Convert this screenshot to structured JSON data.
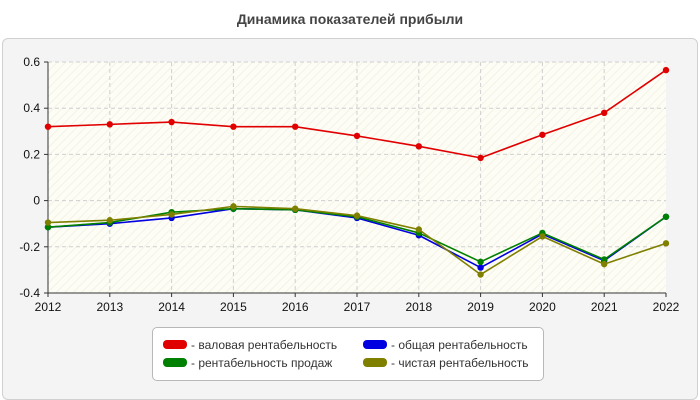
{
  "chart_data": {
    "type": "line",
    "title": "Динамика показателей прибыли",
    "xlabel": "",
    "ylabel": "",
    "categories": [
      "2012",
      "2013",
      "2014",
      "2015",
      "2016",
      "2017",
      "2018",
      "2019",
      "2020",
      "2021",
      "2022"
    ],
    "ylim": [
      -0.4,
      0.6
    ],
    "yticks": [
      -0.4,
      -0.2,
      0,
      0.2,
      0.4,
      0.6
    ],
    "ytick_labels": [
      "-0.4",
      "-0.2",
      "0",
      "0.2",
      "0.4",
      "0.6"
    ],
    "grid": true,
    "legend_position": "bottom",
    "series": [
      {
        "name": "валовая рентабельность",
        "color": "#e00000",
        "values": [
          0.32,
          0.33,
          0.34,
          0.32,
          0.32,
          0.28,
          0.235,
          0.185,
          0.285,
          0.38,
          0.565
        ]
      },
      {
        "name": "общая рентабельность",
        "color": "#0000e0",
        "values": [
          -0.115,
          -0.1,
          -0.075,
          -0.035,
          -0.04,
          -0.075,
          -0.15,
          -0.29,
          -0.145,
          -0.26,
          -0.07
        ]
      },
      {
        "name": "рентабельность продаж",
        "color": "#008000",
        "values": [
          -0.115,
          -0.095,
          -0.05,
          -0.035,
          -0.04,
          -0.07,
          -0.14,
          -0.265,
          -0.14,
          -0.255,
          -0.07
        ]
      },
      {
        "name": "чистая рентабельность",
        "color": "#808000",
        "values": [
          -0.095,
          -0.085,
          -0.06,
          -0.025,
          -0.035,
          -0.065,
          -0.125,
          -0.32,
          -0.155,
          -0.275,
          -0.185
        ]
      }
    ]
  }
}
